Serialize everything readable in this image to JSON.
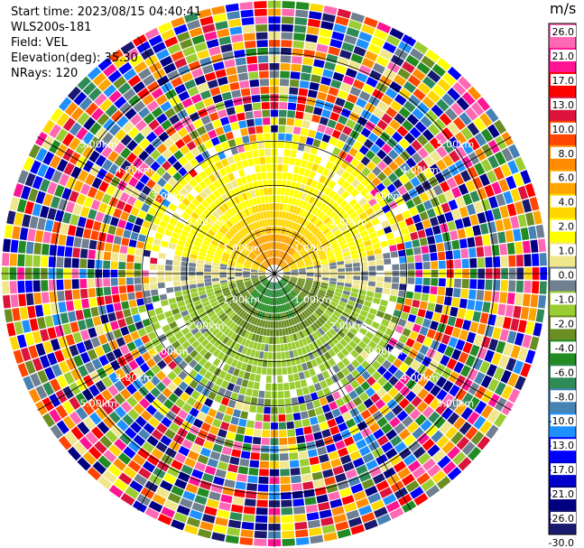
{
  "info": {
    "start_time": "Start time: 2023/08/15 04:40:41",
    "instrument": "WLS200s-181",
    "field": "Field: VEL",
    "elevation": "Elevation(deg): 35.30",
    "nrays": "NRays: 120"
  },
  "chart_data": {
    "type": "heatmap",
    "projection": "polar PPI",
    "field": "VEL",
    "units": "m/s",
    "n_rays": 120,
    "range_rings_km": [
      1.0,
      2.0,
      3.0,
      4.0,
      5.0
    ],
    "ring_label_text": [
      "1.00km",
      "2.00km",
      "3.00km",
      "4.00km",
      "5.00km"
    ],
    "max_range_km": 6.2,
    "colorbar": {
      "unit_label": "m/s",
      "ticks": [
        "26.0",
        "21.0",
        "17.0",
        "13.0",
        "10.0",
        "8.0",
        "6.0",
        "4.0",
        "2.0",
        "1.0",
        "0.0",
        "-1.0",
        "-2.0",
        "-4.0",
        "-6.0",
        "-8.0",
        "-10.0",
        "-13.0",
        "-17.0",
        "-21.0",
        "-26.0",
        "-30.0"
      ],
      "colors": [
        "#ff69b4",
        "#ff1493",
        "#ff0000",
        "#dc143c",
        "#ff4500",
        "#ff8c00",
        "#ffa500",
        "#ffd700",
        "#ffff00",
        "#f0e68c",
        "#708090",
        "#9acd32",
        "#6b8e23",
        "#228b22",
        "#2e8b57",
        "#4682b4",
        "#1e90ff",
        "#0000ff",
        "#0000cd",
        "#000080",
        "#191970"
      ]
    },
    "regions": [
      {
        "description": "positive (receding) velocity north",
        "approx_value": 2.0
      },
      {
        "description": "strong positive core near center north",
        "approx_value": 6.0
      },
      {
        "description": "negative (approaching) velocity south",
        "approx_value": -2.0
      },
      {
        "description": "strong negative core near center south",
        "approx_value": -6.0
      },
      {
        "description": "near-zero band east-west",
        "approx_value": 0.0
      },
      {
        "description": "noise beyond ~3.5 km",
        "approx_value": null
      }
    ]
  }
}
